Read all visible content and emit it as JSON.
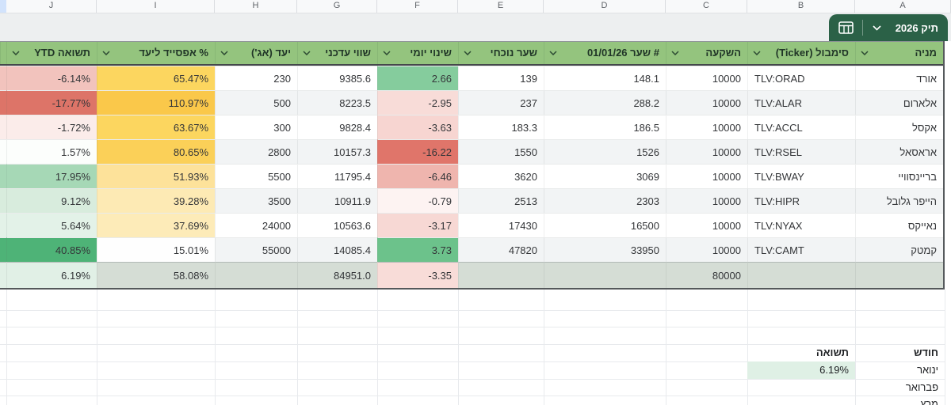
{
  "column_letters": [
    "J",
    "I",
    "H",
    "G",
    "F",
    "E",
    "D",
    "C",
    "B",
    "A"
  ],
  "tab": {
    "title": "תיק 2026"
  },
  "colors": {
    "header_green": "#94c47e",
    "tab_green": "#2b6147",
    "band_gray": "#edeff0",
    "banded_row": "#f2f4f5",
    "total_gray": "#d5ddd5",
    "summary_value_bg": "#dff0e5"
  },
  "table": {
    "headers": {
      "name": "מניה",
      "ticker": "סימבול (Ticker)",
      "investment": "השקעה",
      "price0": "# שער 01/01/26",
      "price": "שער נוכחי",
      "daily": "שינוי יומי",
      "value": "שווי עדכני",
      "target": "יעד (אג')",
      "upside": "% אפסייד ליעד",
      "ytd": "תשואה YTD"
    },
    "rows": [
      {
        "name": "אורד",
        "ticker": "TLV:ORAD",
        "investment": "10000",
        "price0": "148.1",
        "price": "139",
        "daily": "2.66",
        "value": "9385.6",
        "target": "230",
        "upside": "65.47%",
        "ytd": "-6.14%",
        "daily_bg": "#85cc9d",
        "upside_bg": "#fcd65f",
        "ytd_bg": "#f2c3bd"
      },
      {
        "name": "אלארום",
        "ticker": "TLV:ALAR",
        "investment": "10000",
        "price0": "288.2",
        "price": "237",
        "daily": "-2.95",
        "value": "8223.5",
        "target": "500",
        "upside": "110.97%",
        "ytd": "-17.77%",
        "daily_bg": "#f8dcd8",
        "upside_bg": "#fac84a",
        "ytd_bg": "#dd7468"
      },
      {
        "name": "אקסל",
        "ticker": "TLV:ACCL",
        "investment": "10000",
        "price0": "186.5",
        "price": "183.3",
        "daily": "-3.63",
        "value": "9828.4",
        "target": "300",
        "upside": "63.67%",
        "ytd": "-1.72%",
        "daily_bg": "#f7d5d1",
        "upside_bg": "#fcd65f",
        "ytd_bg": "#fbecea"
      },
      {
        "name": "אראסאל",
        "ticker": "TLV:RSEL",
        "investment": "10000",
        "price0": "1526",
        "price": "1550",
        "daily": "-16.22",
        "value": "10157.3",
        "target": "2800",
        "upside": "80.65%",
        "ytd": "1.57%",
        "daily_bg": "#e0756a",
        "upside_bg": "#fbd058",
        "ytd_bg": "#fcfefc"
      },
      {
        "name": "בריינסוויי",
        "ticker": "TLV:BWAY",
        "investment": "10000",
        "price0": "3069",
        "price": "3620",
        "daily": "-6.46",
        "value": "11795.4",
        "target": "5500",
        "upside": "51.93%",
        "ytd": "17.95%",
        "daily_bg": "#efb5ae",
        "upside_bg": "#fde29a",
        "ytd_bg": "#a6d8b6"
      },
      {
        "name": "הייפר גלובל",
        "ticker": "TLV:HIPR",
        "investment": "10000",
        "price0": "2303",
        "price": "2513",
        "daily": "-0.79",
        "value": "10911.9",
        "target": "3500",
        "upside": "39.28%",
        "ytd": "9.12%",
        "daily_bg": "#fdf3f2",
        "upside_bg": "#fdeab4",
        "ytd_bg": "#d8ecdd"
      },
      {
        "name": "נאייקס",
        "ticker": "TLV:NYAX",
        "investment": "10000",
        "price0": "16500",
        "price": "17430",
        "daily": "-3.17",
        "value": "10563.6",
        "target": "24000",
        "upside": "37.69%",
        "ytd": "5.64%",
        "daily_bg": "#f7d8d4",
        "upside_bg": "#fdebb8",
        "ytd_bg": "#e3f2e8"
      },
      {
        "name": "קמטק",
        "ticker": "TLV:CAMT",
        "investment": "10000",
        "price0": "33950",
        "price": "47820",
        "daily": "3.73",
        "value": "14085.4",
        "target": "55000",
        "upside": "15.01%",
        "ytd": "40.85%",
        "daily_bg": "#6cc28b",
        "upside_bg": "#fefefe",
        "ytd_bg": "#4eb377"
      }
    ],
    "total": {
      "investment": "80000",
      "daily": "-3.35",
      "value": "84951.0",
      "upside": "58.08%",
      "ytd": "6.19%",
      "daily_bg": "#f8dcd8",
      "ytd_bg": "#e1f0e6"
    }
  },
  "summary": {
    "month_header": "חודש",
    "return_header": "תשואה",
    "rows": [
      {
        "month": "ינואר",
        "value": "6.19%"
      },
      {
        "month": "פברואר",
        "value": ""
      },
      {
        "month": "מרץ",
        "value": ""
      }
    ]
  }
}
